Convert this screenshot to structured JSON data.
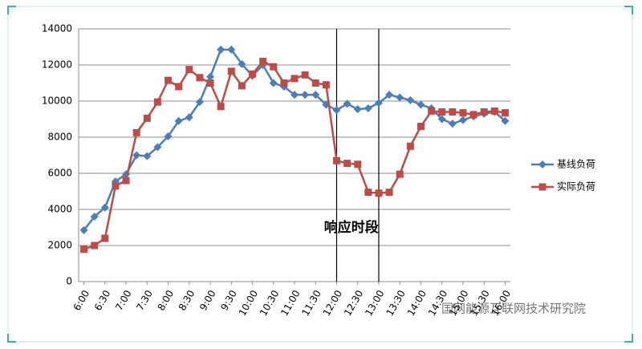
{
  "chart_data": {
    "type": "line",
    "categories": [
      "6:00",
      null,
      "6:30",
      null,
      "7:00",
      null,
      "7:30",
      null,
      "8:00",
      null,
      "8:30",
      null,
      "9:00",
      null,
      "9:30",
      null,
      "10:00",
      null,
      "10:30",
      null,
      "11:00",
      null,
      "11:30",
      null,
      "12:00",
      null,
      "12:30",
      null,
      "13:00",
      null,
      "13:30",
      null,
      "14:00",
      null,
      "14:30",
      null,
      "15:00",
      null,
      "15:30",
      null,
      "16:00"
    ],
    "series": [
      {
        "name": "基线负荷",
        "color": "#4a7ebb",
        "marker": "diamond",
        "values": [
          2850,
          3600,
          4100,
          5550,
          5950,
          7000,
          6950,
          7450,
          8050,
          8900,
          9100,
          9950,
          11350,
          12850,
          12850,
          12050,
          11400,
          12000,
          11000,
          10800,
          10350,
          10350,
          10350,
          9800,
          9500,
          9850,
          9550,
          9600,
          9900,
          10350,
          10200,
          10050,
          9800,
          9600,
          9000,
          8750,
          8950,
          9150,
          9300,
          9400,
          8900
        ]
      },
      {
        "name": "实际负荷",
        "color": "#be4b48",
        "marker": "square",
        "values": [
          1800,
          2000,
          2400,
          5300,
          5600,
          8250,
          9050,
          9950,
          11150,
          10800,
          11750,
          11300,
          11000,
          9700,
          11650,
          10850,
          11500,
          12200,
          11900,
          11000,
          11250,
          11450,
          11000,
          10900,
          6700,
          6550,
          6500,
          4950,
          4900,
          4950,
          5950,
          7500,
          8600,
          9450,
          9400,
          9400,
          9350,
          9250,
          9400,
          9450,
          9350
        ]
      }
    ],
    "ylim": [
      0,
      14000
    ],
    "yticks": [
      0,
      2000,
      4000,
      6000,
      8000,
      10000,
      12000,
      14000
    ],
    "grid": true,
    "legend": "right",
    "annotation": {
      "text": "响应时段",
      "x_range": [
        "12:00",
        "13:00"
      ]
    },
    "watermark": "国网能源互联网技术研究院"
  }
}
